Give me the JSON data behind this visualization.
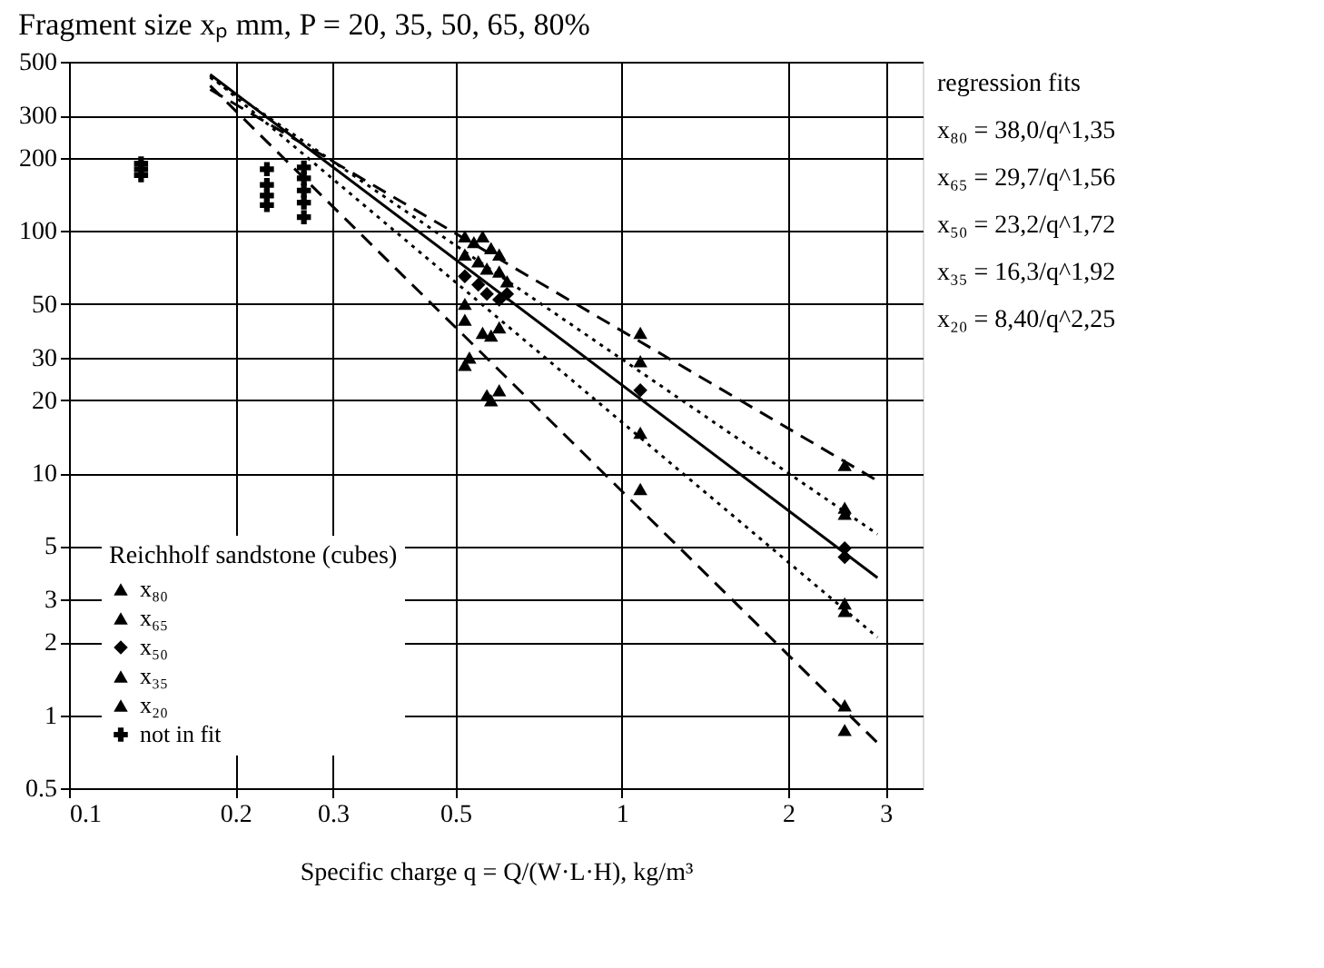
{
  "chart_data": {
    "type": "scatter",
    "title": "Fragment size xₚ mm, P = 20, 35, 50, 65, 80%",
    "xlabel": "Specific charge q = Q/(W·L·H), kg/m³",
    "legend_title": "Reichholf sandstone (cubes)",
    "xlim": [
      0.1,
      3.5
    ],
    "ylim": [
      0.5,
      500
    ],
    "log": "xy",
    "grid": true,
    "legend": "bottom left",
    "xticks": [
      0.1,
      0.2,
      0.3,
      0.5,
      1,
      2,
      3
    ],
    "yticks": [
      0.5,
      1,
      2,
      3,
      5,
      10,
      20,
      30,
      50,
      100,
      200,
      300,
      500
    ],
    "annotations": [
      "regression fits",
      "x₈₀ = 38,0/q^1,35",
      "x₆₅ = 29,7/q^1,56",
      "x₅₀ = 23,2/q^1,72",
      "x₃₅ = 16,3/q^1,92",
      "x₂₀ = 8,40/q^2,25"
    ],
    "series": [
      {
        "name": "x₈₀",
        "color": "#000000",
        "marker": "triangle",
        "x": [
          0.52,
          0.54,
          0.56,
          0.58,
          0.6,
          1.08,
          2.53
        ],
        "values": [
          95,
          90,
          95,
          85,
          80,
          38,
          10.8
        ]
      },
      {
        "name": "x₆₅",
        "color": "#000000",
        "marker": "triangle",
        "x": [
          0.52,
          0.55,
          0.57,
          0.6,
          0.62,
          1.08,
          2.53,
          2.53
        ],
        "values": [
          80,
          75,
          70,
          68,
          62,
          29,
          7.2,
          6.8
        ]
      },
      {
        "name": "x₅₀",
        "color": "#000000",
        "marker": "diamond",
        "x": [
          0.52,
          0.55,
          0.57,
          0.6,
          0.62,
          1.08,
          2.53,
          2.53
        ],
        "values": [
          65,
          60,
          55,
          52,
          55,
          22,
          4.9,
          4.5
        ]
      },
      {
        "name": "x₃₅",
        "color": "#000000",
        "marker": "triangle",
        "x": [
          0.52,
          0.56,
          0.58,
          0.6,
          1.08,
          2.53,
          2.53
        ],
        "values": [
          50,
          38,
          37,
          40,
          14.7,
          2.9,
          2.7
        ]
      },
      {
        "name": "x₂₀",
        "color": "#000000",
        "marker": "triangle",
        "x": [
          0.52,
          0.52,
          0.53,
          0.57,
          0.58,
          0.6,
          1.08,
          2.53,
          2.53
        ],
        "values": [
          43,
          28,
          30,
          21,
          20,
          22,
          8.6,
          1.1,
          0.87
        ]
      },
      {
        "name": "not in fit",
        "color": "#000000",
        "marker": "cross",
        "x": [
          0.135,
          0.135,
          0.135,
          0.228,
          0.228,
          0.228,
          0.228,
          0.266,
          0.266,
          0.266,
          0.266,
          0.266
        ],
        "values": [
          170,
          180,
          190,
          180,
          155,
          140,
          128,
          183,
          165,
          147,
          131,
          114
        ]
      },
      {
        "type": "line",
        "color": "#000000",
        "line_style": "dashed",
        "x": [
          0.18,
          2.9
        ],
        "values": [
          384,
          9.3
        ]
      },
      {
        "type": "line",
        "color": "#000000",
        "line_style": "dotted",
        "x": [
          0.18,
          2.9
        ],
        "values": [
          431,
          5.6
        ]
      },
      {
        "type": "line",
        "color": "#000000",
        "line_style": "solid",
        "x": [
          0.18,
          2.9
        ],
        "values": [
          443,
          3.7
        ]
      },
      {
        "type": "line",
        "color": "#000000",
        "line_style": "dotted",
        "x": [
          0.18,
          2.9
        ],
        "values": [
          438,
          2.1
        ]
      },
      {
        "type": "line",
        "color": "#000000",
        "line_style": "dashed",
        "x": [
          0.18,
          2.9
        ],
        "values": [
          398,
          0.77
        ]
      }
    ]
  }
}
